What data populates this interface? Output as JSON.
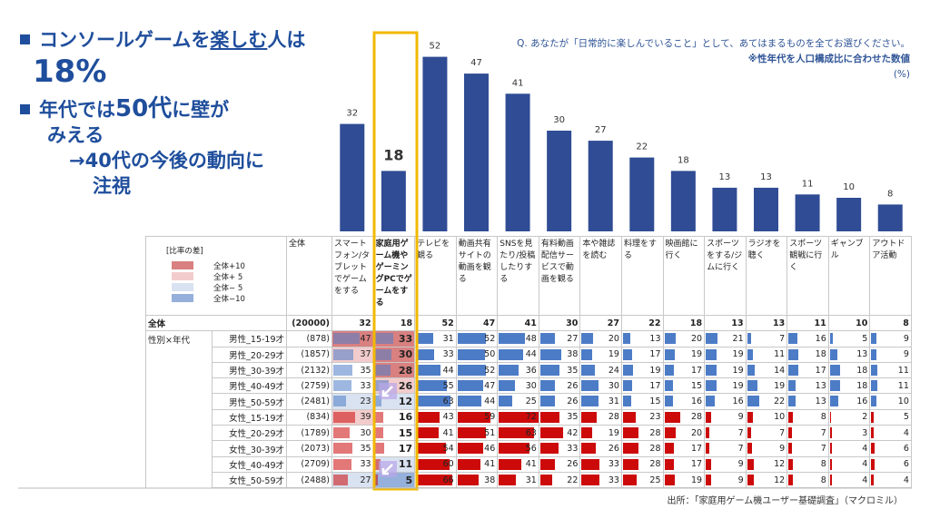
{
  "lead": {
    "parts": [
      "コンソールゲームを",
      "楽しむ",
      "人は"
    ],
    "value": "18%"
  },
  "point2": {
    "parts": [
      "年代では",
      "50代",
      "に壁が",
      "みえる"
    ]
  },
  "point3": {
    "lines": [
      "→40代の今後の動向に",
      "注視"
    ]
  },
  "question": "Q. あなたが「日常的に楽しんでいること」として、あてはまるものを全てお選びください。",
  "note": "※性年代を人口構成比に合わせた数値",
  "unit": "(%)",
  "source": "出所：「家庭用ゲーム機ユーザー基礎調査」（マクロミル）",
  "chart_data": {
    "type": "bar",
    "color": "#2f4c94",
    "categories": [
      "スマートフォン/タブレットでゲームをする",
      "家庭用ゲーム機やゲーミングPCでゲームをする",
      "テレビを観る",
      "動画共有サイトの動画を観る",
      "SNSを見たり/投稿したりする",
      "有料動画配信サービスで動画を観る",
      "本や雑誌を読む",
      "料理をする",
      "映画館に行く",
      "スポーツをする/ジムに行く",
      "ラジオを聴く",
      "スポーツ観戦に行く",
      "ギャンブル",
      "アウトドア活動"
    ],
    "values": [
      32,
      18,
      52,
      47,
      41,
      30,
      27,
      22,
      18,
      13,
      13,
      11,
      10,
      8
    ]
  },
  "table": {
    "total_header": "全体",
    "total_row": {
      "label": "全体",
      "n": "(20000)"
    },
    "group_label": "性別×年代",
    "legend": {
      "title": "[比率の差]",
      "items": [
        {
          "label": "全体+10",
          "color": "#d98080"
        },
        {
          "label": "全体+ 5",
          "color": "#f2cccc"
        },
        {
          "label": "全体− 5",
          "color": "#d9e2f0"
        },
        {
          "label": "全体−10",
          "color": "#95b0da"
        }
      ]
    },
    "shaded_columns": [
      0,
      1
    ],
    "rows": [
      {
        "label": "男性_15-19才",
        "n": "(878)",
        "color": "#4d7cc7",
        "values": [
          47,
          33,
          31,
          52,
          48,
          27,
          20,
          13,
          20,
          21,
          7,
          16,
          5,
          9
        ]
      },
      {
        "label": "男性_20-29才",
        "n": "(1857)",
        "color": "#4d7cc7",
        "values": [
          37,
          30,
          33,
          50,
          44,
          38,
          19,
          17,
          19,
          19,
          11,
          18,
          13,
          9
        ]
      },
      {
        "label": "男性_30-39才",
        "n": "(2132)",
        "color": "#4d7cc7",
        "values": [
          35,
          28,
          44,
          52,
          36,
          35,
          24,
          19,
          17,
          19,
          14,
          17,
          18,
          11
        ]
      },
      {
        "label": "男性_40-49才",
        "n": "(2759)",
        "color": "#4d7cc7",
        "values": [
          33,
          26,
          55,
          47,
          30,
          26,
          30,
          17,
          15,
          19,
          19,
          13,
          18,
          11
        ]
      },
      {
        "label": "男性_50-59才",
        "n": "(2481)",
        "color": "#4d7cc7",
        "values": [
          23,
          12,
          63,
          44,
          25,
          26,
          31,
          15,
          16,
          16,
          22,
          13,
          16,
          10
        ]
      },
      {
        "label": "女性_15-19才",
        "n": "(834)",
        "color": "#cc0a0a",
        "values": [
          39,
          16,
          43,
          59,
          72,
          35,
          28,
          23,
          28,
          9,
          10,
          8,
          2,
          5
        ]
      },
      {
        "label": "女性_20-29才",
        "n": "(1789)",
        "color": "#cc0a0a",
        "values": [
          30,
          15,
          41,
          51,
          63,
          42,
          19,
          28,
          20,
          7,
          7,
          7,
          3,
          4
        ]
      },
      {
        "label": "女性_30-39才",
        "n": "(2073)",
        "color": "#cc0a0a",
        "values": [
          35,
          17,
          54,
          46,
          56,
          33,
          26,
          28,
          17,
          7,
          9,
          7,
          4,
          6
        ]
      },
      {
        "label": "女性_40-49才",
        "n": "(2709)",
        "color": "#cc0a0a",
        "values": [
          33,
          11,
          60,
          41,
          41,
          26,
          33,
          28,
          17,
          9,
          12,
          8,
          4,
          6
        ]
      },
      {
        "label": "女性_50-59才",
        "n": "(2488)",
        "color": "#cc0a0a",
        "values": [
          27,
          5,
          66,
          38,
          31,
          22,
          33,
          25,
          19,
          9,
          12,
          8,
          4,
          4
        ]
      }
    ]
  }
}
